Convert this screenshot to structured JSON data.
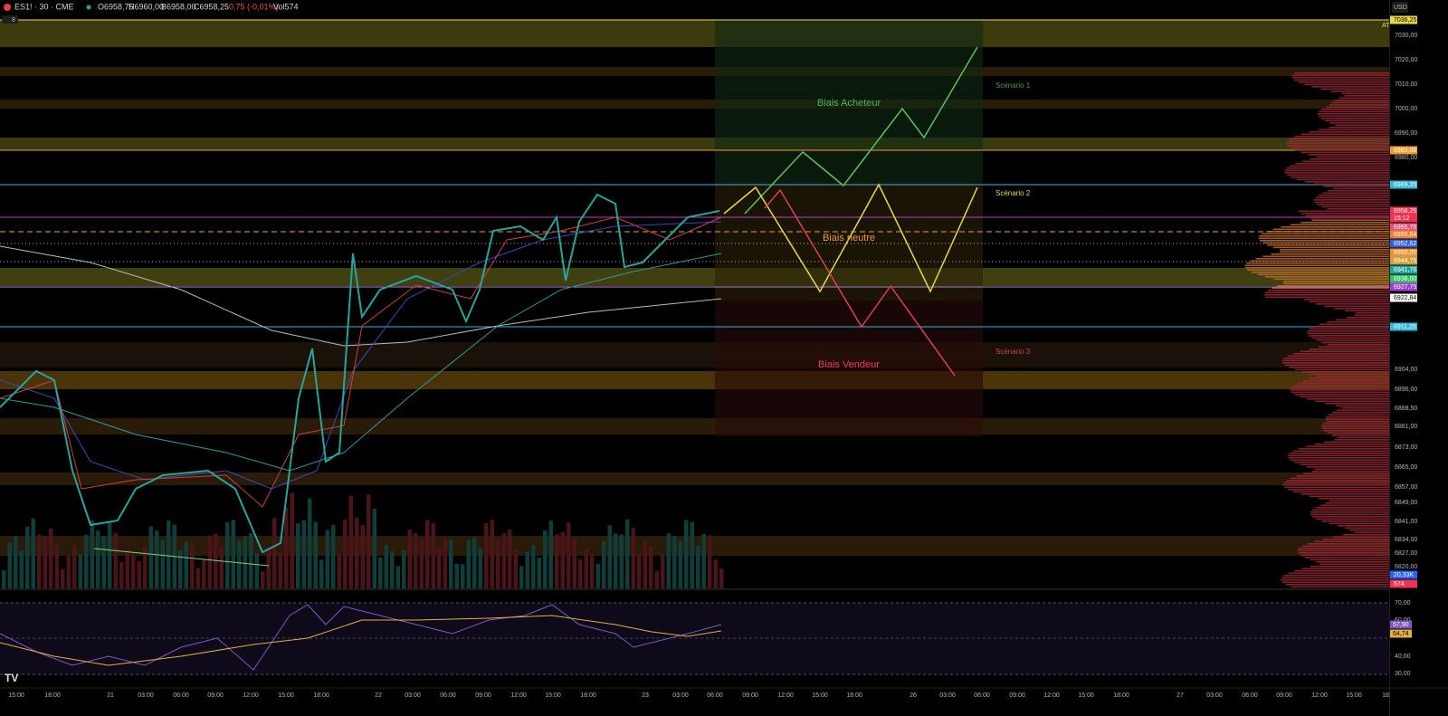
{
  "header": {
    "symbol": "ES1! · 30 · CME",
    "open": "O6958,75",
    "high": "H6960,00",
    "bid": "B6958,00",
    "close": "C6958,25",
    "change": "-0,75 (-0,01%)",
    "volume": "Vol574",
    "currency": "USD",
    "indicator_count": "8"
  },
  "price_axis": [
    "7030,00",
    "7020,00",
    "7010,00",
    "7000,00",
    "6990,00",
    "6980,00",
    "6904,00",
    "6896,00",
    "6888,50",
    "6881,00",
    "6873,00",
    "6865,00",
    "6857,00",
    "6849,00",
    "6841,00",
    "6834,00",
    "6827,00",
    "6820,00"
  ],
  "price_badges": [
    "7036,25",
    "6983,00",
    "6969,25",
    "6958,25",
    "15:12",
    "6955,75",
    "6955,64",
    "6952,62",
    "6950,00",
    "6944,75",
    "6941,76",
    "6938,00",
    "6927,75",
    "6922,84",
    "6911,25",
    "20,33K",
    "574"
  ],
  "time_axis": [
    "15:00",
    "18:00",
    "21",
    "03:00",
    "06:00",
    "09:00",
    "12:00",
    "15:00",
    "18:00",
    "22",
    "03:00",
    "06:00",
    "09:00",
    "12:00",
    "15:00",
    "18:00",
    "23",
    "03:00",
    "06:00",
    "09:00",
    "12:00",
    "15:00",
    "18:00",
    "26",
    "03:00",
    "06:00",
    "09:00",
    "12:00",
    "15:00",
    "18:00",
    "27",
    "03:00",
    "06:00",
    "09:00",
    "12:00",
    "15:00",
    "18:"
  ],
  "annotations": {
    "ath": "ATH",
    "scenario_1": "Scénario 1",
    "scenario_2": "Scénario 2",
    "scenario_3": "Scénario 3",
    "bias_buyer": "Biais Acheteur",
    "bias_neutral": "Biais neutre",
    "bias_seller": "Biais Vendeur"
  },
  "rsi_axis": [
    "70,00",
    "60,00",
    "40,00",
    "30,00"
  ],
  "rsi_badges": [
    "57,90",
    "54,74"
  ]
}
